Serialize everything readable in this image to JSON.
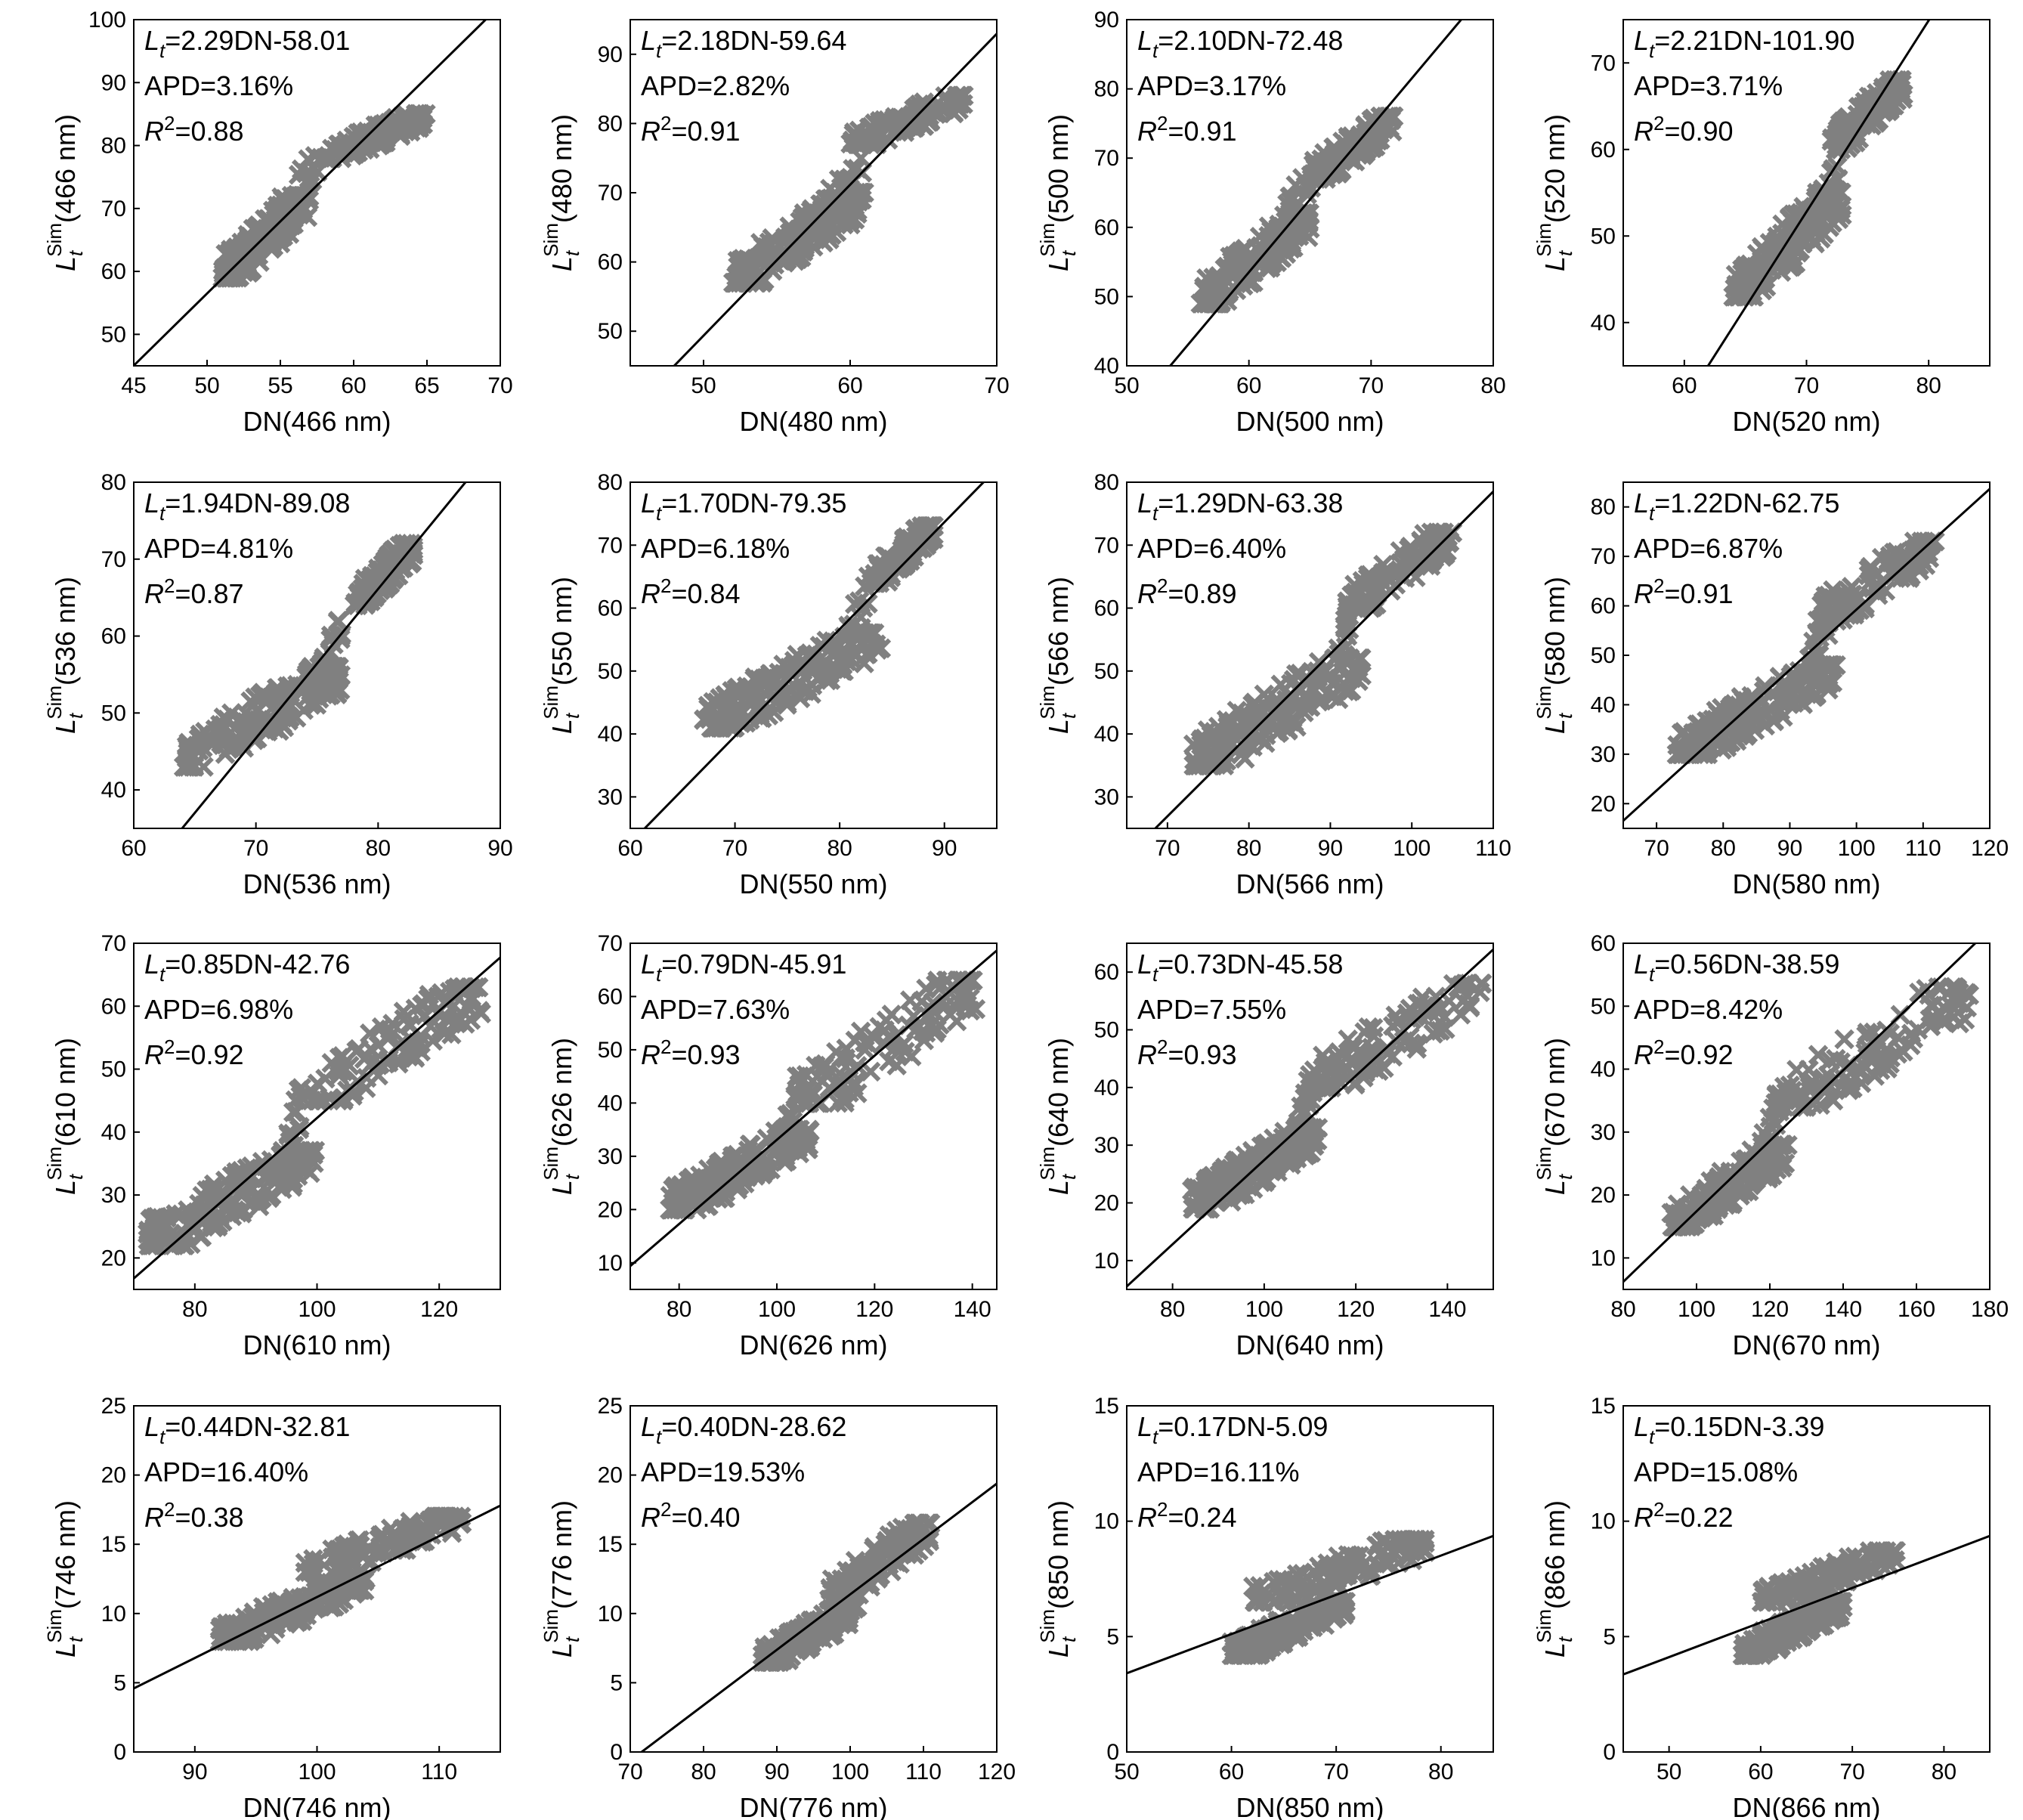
{
  "chart_data": [
    {
      "type": "scatter",
      "band": "466",
      "xlabel": "DN(466 nm)",
      "ylabel": "L_t^Sim(466 nm)",
      "xlim": [
        45,
        70
      ],
      "ylim": [
        45,
        100
      ],
      "xticks": [
        45,
        50,
        55,
        60,
        65,
        70
      ],
      "yticks": [
        50,
        60,
        70,
        80,
        90,
        100
      ],
      "fit": {
        "slope": 2.29,
        "intercept": -58.01
      },
      "annotations": {
        "equation": "=2.29DN-58.01",
        "apd": "APD=3.16%",
        "r2": "=0.88"
      },
      "clusters": [
        {
          "x": [
            51,
            57
          ],
          "y": [
            59,
            72
          ],
          "n": 170
        },
        {
          "x": [
            55,
            58
          ],
          "y": [
            70,
            79
          ],
          "n": 20
        },
        {
          "x": [
            58,
            65
          ],
          "y": [
            78,
            85
          ],
          "n": 110
        }
      ]
    },
    {
      "type": "scatter",
      "band": "480",
      "xlabel": "DN(480 nm)",
      "ylabel": "L_t^Sim(480 nm)",
      "xlim": [
        45,
        70
      ],
      "ylim": [
        45,
        95
      ],
      "xticks": [
        50,
        60,
        70
      ],
      "yticks": [
        50,
        60,
        70,
        80,
        90
      ],
      "fit": {
        "slope": 2.18,
        "intercept": -59.64
      },
      "annotations": {
        "equation": "=2.18DN-59.64",
        "apd": "APD=2.82%",
        "r2": "=0.91"
      },
      "clusters": [
        {
          "x": [
            52,
            61
          ],
          "y": [
            57,
            70
          ],
          "n": 170
        },
        {
          "x": [
            58,
            61
          ],
          "y": [
            67,
            75
          ],
          "n": 20
        },
        {
          "x": [
            60,
            68
          ],
          "y": [
            77,
            84
          ],
          "n": 110
        }
      ]
    },
    {
      "type": "scatter",
      "band": "500",
      "xlabel": "DN(500 nm)",
      "ylabel": "L_t^Sim(500 nm)",
      "xlim": [
        50,
        80
      ],
      "ylim": [
        40,
        90
      ],
      "xticks": [
        50,
        60,
        70,
        80
      ],
      "yticks": [
        40,
        50,
        60,
        70,
        80,
        90
      ],
      "fit": {
        "slope": 2.1,
        "intercept": -72.48
      },
      "annotations": {
        "equation": "=2.10DN-72.48",
        "apd": "APD=3.17%",
        "r2": "=0.91"
      },
      "clusters": [
        {
          "x": [
            56,
            65
          ],
          "y": [
            49,
            62
          ],
          "n": 170
        },
        {
          "x": [
            63,
            66
          ],
          "y": [
            62,
            70
          ],
          "n": 20
        },
        {
          "x": [
            65,
            72
          ],
          "y": [
            67,
            76
          ],
          "n": 110
        }
      ]
    },
    {
      "type": "scatter",
      "band": "520",
      "xlabel": "DN(520 nm)",
      "ylabel": "L_t^Sim(520 nm)",
      "xlim": [
        55,
        85
      ],
      "ylim": [
        35,
        75
      ],
      "xticks": [
        60,
        70,
        80
      ],
      "yticks": [
        40,
        50,
        60,
        70
      ],
      "fit": {
        "slope": 2.21,
        "intercept": -101.9
      },
      "annotations": {
        "equation": "=2.21DN-101.90",
        "apd": "APD=3.71%",
        "r2": "=0.90"
      },
      "clusters": [
        {
          "x": [
            64,
            73
          ],
          "y": [
            43,
            55
          ],
          "n": 170
        },
        {
          "x": [
            70,
            73
          ],
          "y": [
            50,
            58
          ],
          "n": 20
        },
        {
          "x": [
            72,
            78
          ],
          "y": [
            60,
            68
          ],
          "n": 110
        }
      ]
    },
    {
      "type": "scatter",
      "band": "536",
      "xlabel": "DN(536 nm)",
      "ylabel": "L_t^Sim(536 nm)",
      "xlim": [
        60,
        90
      ],
      "ylim": [
        35,
        80
      ],
      "xticks": [
        60,
        70,
        80,
        90
      ],
      "yticks": [
        40,
        50,
        60,
        70,
        80
      ],
      "fit": {
        "slope": 1.94,
        "intercept": -89.08
      },
      "annotations": {
        "equation": "=1.94DN-89.08",
        "apd": "APD=4.81%",
        "r2": "=0.87"
      },
      "clusters": [
        {
          "x": [
            64,
            77
          ],
          "y": [
            43,
            56
          ],
          "n": 170
        },
        {
          "x": [
            75,
            77
          ],
          "y": [
            52,
            62
          ],
          "n": 20
        },
        {
          "x": [
            78,
            83
          ],
          "y": [
            64,
            72
          ],
          "n": 110
        }
      ]
    },
    {
      "type": "scatter",
      "band": "550",
      "xlabel": "DN(550 nm)",
      "ylabel": "L_t^Sim(550 nm)",
      "xlim": [
        60,
        95
      ],
      "ylim": [
        25,
        80
      ],
      "xticks": [
        60,
        70,
        80,
        90
      ],
      "yticks": [
        30,
        40,
        50,
        60,
        70,
        80
      ],
      "fit": {
        "slope": 1.7,
        "intercept": -79.35
      },
      "annotations": {
        "equation": "=1.70DN-79.35",
        "apd": "APD=6.18%",
        "r2": "=0.84"
      },
      "clusters": [
        {
          "x": [
            67,
            84
          ],
          "y": [
            41,
            56
          ],
          "n": 170
        },
        {
          "x": [
            80,
            83
          ],
          "y": [
            50,
            65
          ],
          "n": 20
        },
        {
          "x": [
            83,
            89
          ],
          "y": [
            64,
            73
          ],
          "n": 110
        }
      ]
    },
    {
      "type": "scatter",
      "band": "566",
      "xlabel": "DN(566 nm)",
      "ylabel": "L_t^Sim(566 nm)",
      "xlim": [
        65,
        110
      ],
      "ylim": [
        25,
        80
      ],
      "xticks": [
        70,
        80,
        90,
        100,
        110
      ],
      "yticks": [
        30,
        40,
        50,
        60,
        70,
        80
      ],
      "fit": {
        "slope": 1.29,
        "intercept": -63.38
      },
      "annotations": {
        "equation": "=1.29DN-63.38",
        "apd": "APD=6.40%",
        "r2": "=0.89"
      },
      "clusters": [
        {
          "x": [
            73,
            94
          ],
          "y": [
            35,
            52
          ],
          "n": 170
        },
        {
          "x": [
            90,
            93
          ],
          "y": [
            46,
            62
          ],
          "n": 20
        },
        {
          "x": [
            92,
            105
          ],
          "y": [
            60,
            72
          ],
          "n": 110
        }
      ]
    },
    {
      "type": "scatter",
      "band": "580",
      "xlabel": "DN(580 nm)",
      "ylabel": "L_t^Sim(580 nm)",
      "xlim": [
        65,
        120
      ],
      "ylim": [
        15,
        85
      ],
      "xticks": [
        70,
        80,
        90,
        100,
        110,
        120
      ],
      "yticks": [
        20,
        30,
        40,
        50,
        60,
        70,
        80
      ],
      "fit": {
        "slope": 1.22,
        "intercept": -62.75
      },
      "annotations": {
        "equation": "=1.22DN-62.75",
        "apd": "APD=6.87%",
        "r2": "=0.91"
      },
      "clusters": [
        {
          "x": [
            73,
            97
          ],
          "y": [
            30,
            48
          ],
          "n": 170
        },
        {
          "x": [
            92,
            96
          ],
          "y": [
            45,
            58
          ],
          "n": 20
        },
        {
          "x": [
            94,
            112
          ],
          "y": [
            57,
            73
          ],
          "n": 110
        }
      ]
    },
    {
      "type": "scatter",
      "band": "610",
      "xlabel": "DN(610 nm)",
      "ylabel": "L_t^Sim(610 nm)",
      "xlim": [
        70,
        130
      ],
      "ylim": [
        15,
        70
      ],
      "xticks": [
        80,
        100,
        120
      ],
      "yticks": [
        20,
        30,
        40,
        50,
        60,
        70
      ],
      "fit": {
        "slope": 0.85,
        "intercept": -42.76
      },
      "annotations": {
        "equation": "=0.85DN-42.76",
        "apd": "APD=6.98%",
        "r2": "=0.92"
      },
      "clusters": [
        {
          "x": [
            72,
            100
          ],
          "y": [
            22,
            37
          ],
          "n": 170
        },
        {
          "x": [
            94,
            98
          ],
          "y": [
            33,
            47
          ],
          "n": 20
        },
        {
          "x": [
            99,
            127
          ],
          "y": [
            45,
            63
          ],
          "n": 110
        }
      ]
    },
    {
      "type": "scatter",
      "band": "626",
      "xlabel": "DN(626 nm)",
      "ylabel": "L_t^Sim(626 nm)",
      "xlim": [
        70,
        145
      ],
      "ylim": [
        5,
        70
      ],
      "xticks": [
        80,
        100,
        120,
        140
      ],
      "yticks": [
        10,
        20,
        30,
        40,
        50,
        60,
        70
      ],
      "fit": {
        "slope": 0.79,
        "intercept": -45.91
      },
      "annotations": {
        "equation": "=0.79DN-45.91",
        "apd": "APD=7.63%",
        "r2": "=0.93"
      },
      "clusters": [
        {
          "x": [
            78,
            107
          ],
          "y": [
            20,
            35
          ],
          "n": 170
        },
        {
          "x": [
            101,
            105
          ],
          "y": [
            30,
            45
          ],
          "n": 20
        },
        {
          "x": [
            105,
            141
          ],
          "y": [
            40,
            63
          ],
          "n": 110
        }
      ]
    },
    {
      "type": "scatter",
      "band": "640",
      "xlabel": "DN(640 nm)",
      "ylabel": "L_t^Sim(640 nm)",
      "xlim": [
        70,
        150
      ],
      "ylim": [
        5,
        65
      ],
      "xticks": [
        80,
        100,
        120,
        140
      ],
      "yticks": [
        10,
        20,
        30,
        40,
        50,
        60
      ],
      "fit": {
        "slope": 0.73,
        "intercept": -45.58
      },
      "annotations": {
        "equation": "=0.73DN-45.58",
        "apd": "APD=7.55%",
        "r2": "=0.93"
      },
      "clusters": [
        {
          "x": [
            84,
            112
          ],
          "y": [
            19,
            33
          ],
          "n": 170
        },
        {
          "x": [
            107,
            111
          ],
          "y": [
            30,
            44
          ],
          "n": 20
        },
        {
          "x": [
            110,
            148
          ],
          "y": [
            40,
            58
          ],
          "n": 110
        }
      ]
    },
    {
      "type": "scatter",
      "band": "670",
      "xlabel": "DN(670 nm)",
      "ylabel": "L_t^Sim(670 nm)",
      "xlim": [
        80,
        180
      ],
      "ylim": [
        5,
        60
      ],
      "xticks": [
        80,
        100,
        120,
        140,
        160,
        180
      ],
      "yticks": [
        10,
        20,
        30,
        40,
        50,
        60
      ],
      "fit": {
        "slope": 0.56,
        "intercept": -38.59
      },
      "annotations": {
        "equation": "=0.56DN-38.59",
        "apd": "APD=8.42%",
        "r2": "=0.92"
      },
      "clusters": [
        {
          "x": [
            93,
            125
          ],
          "y": [
            15,
            28
          ],
          "n": 170
        },
        {
          "x": [
            117,
            123
          ],
          "y": [
            25,
            36
          ],
          "n": 20
        },
        {
          "x": [
            123,
            175
          ],
          "y": [
            34,
            53
          ],
          "n": 110
        }
      ]
    },
    {
      "type": "scatter",
      "band": "746",
      "xlabel": "DN(746 nm)",
      "ylabel": "L_t^Sim(746 nm)",
      "xlim": [
        85,
        115
      ],
      "ylim": [
        0,
        25
      ],
      "xticks": [
        90,
        100,
        110
      ],
      "yticks": [
        0,
        5,
        10,
        15,
        20,
        25
      ],
      "fit": {
        "slope": 0.44,
        "intercept": -32.81
      },
      "annotations": {
        "equation": "=0.44DN-32.81",
        "apd": "APD=16.40%",
        "r2": "=0.38"
      },
      "clusters": [
        {
          "x": [
            92,
            104
          ],
          "y": [
            8,
            12.5
          ],
          "n": 170
        },
        {
          "x": [
            99,
            112
          ],
          "y": [
            13,
            17
          ],
          "n": 110
        }
      ]
    },
    {
      "type": "scatter",
      "band": "776",
      "xlabel": "DN(776 nm)",
      "ylabel": "L_t^Sim(776 nm)",
      "xlim": [
        70,
        120
      ],
      "ylim": [
        0,
        25
      ],
      "xticks": [
        70,
        80,
        90,
        100,
        110,
        120
      ],
      "yticks": [
        0,
        5,
        10,
        15,
        20,
        25
      ],
      "fit": {
        "slope": 0.4,
        "intercept": -28.62
      },
      "annotations": {
        "equation": "=0.40DN-28.62",
        "apd": "APD=19.53%",
        "r2": "=0.40"
      },
      "clusters": [
        {
          "x": [
            88,
            101
          ],
          "y": [
            6.5,
            10.5
          ],
          "n": 170
        },
        {
          "x": [
            97,
            111
          ],
          "y": [
            11,
            16.5
          ],
          "n": 110
        }
      ]
    },
    {
      "type": "scatter",
      "band": "850",
      "xlabel": "DN(850 nm)",
      "ylabel": "L_t^Sim(850 nm)",
      "xlim": [
        50,
        85
      ],
      "ylim": [
        0,
        15
      ],
      "xticks": [
        50,
        60,
        70,
        80
      ],
      "yticks": [
        0,
        5,
        10,
        15
      ],
      "fit": {
        "slope": 0.17,
        "intercept": -5.09
      },
      "annotations": {
        "equation": "=0.17DN-5.09",
        "apd": "APD=16.11%",
        "r2": "=0.24"
      },
      "clusters": [
        {
          "x": [
            60,
            71
          ],
          "y": [
            4.2,
            6.5
          ],
          "n": 170
        },
        {
          "x": [
            62,
            79
          ],
          "y": [
            6.5,
            9.2
          ],
          "n": 110
        }
      ]
    },
    {
      "type": "scatter",
      "band": "866",
      "xlabel": "DN(866 nm)",
      "ylabel": "L_t^Sim(866 nm)",
      "xlim": [
        45,
        85
      ],
      "ylim": [
        0,
        15
      ],
      "xticks": [
        50,
        60,
        70,
        80
      ],
      "yticks": [
        0,
        5,
        10,
        15
      ],
      "fit": {
        "slope": 0.15,
        "intercept": -3.39
      },
      "annotations": {
        "equation": "=0.15DN-3.39",
        "apd": "APD=15.08%",
        "r2": "=0.22"
      },
      "clusters": [
        {
          "x": [
            58,
            69
          ],
          "y": [
            4.2,
            6.5
          ],
          "n": 170
        },
        {
          "x": [
            60,
            75
          ],
          "y": [
            6.5,
            8.7
          ],
          "n": 110
        }
      ]
    }
  ]
}
